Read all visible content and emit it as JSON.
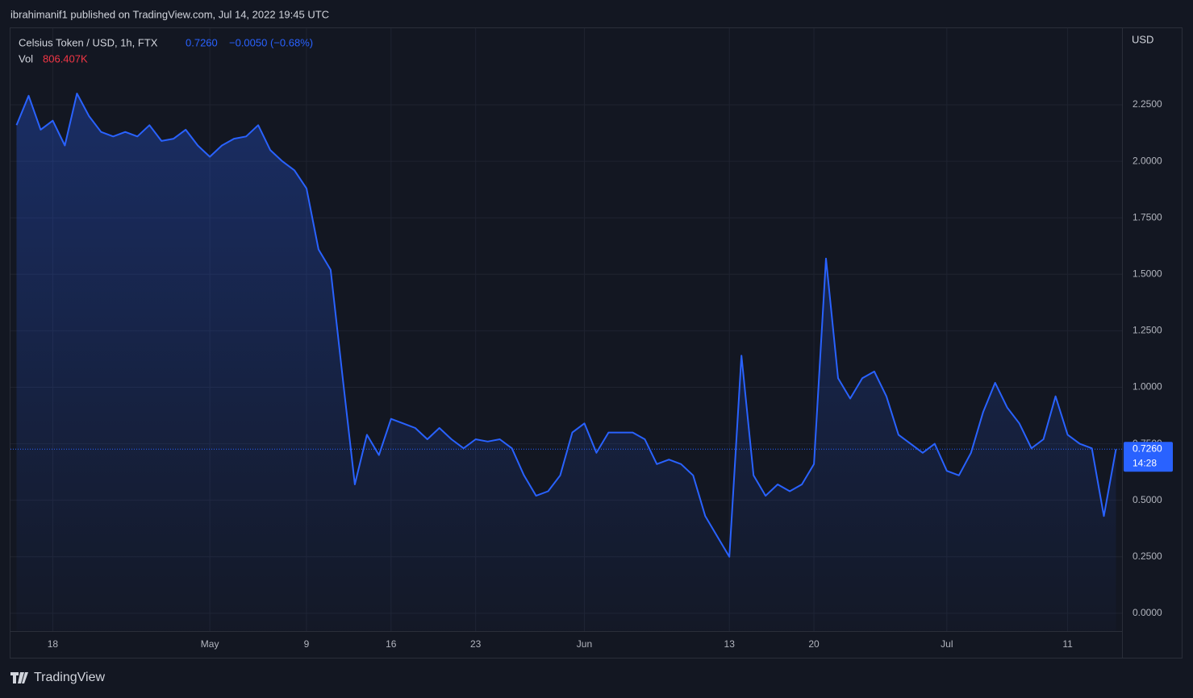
{
  "header": {
    "publisher": "ibrahimanif1 published on TradingView.com, Jul 14, 2022 19:45 UTC",
    "footer_logo": "TradingView"
  },
  "chart_data": {
    "type": "area",
    "title": "Celsius Token / USD, 1h, FTX",
    "last_price": "0.7260",
    "change": "−0.0050 (−0.68%)",
    "countdown": "14:28",
    "volume_label": "Vol",
    "volume_value": "806.407K",
    "y_axis_label": "USD",
    "categories": [
      null,
      null,
      null,
      "18",
      null,
      null,
      null,
      null,
      null,
      null,
      null,
      null,
      null,
      null,
      null,
      null,
      "May",
      null,
      null,
      null,
      null,
      null,
      null,
      null,
      "9",
      null,
      null,
      null,
      null,
      null,
      null,
      "16",
      null,
      null,
      null,
      null,
      null,
      null,
      "23",
      null,
      null,
      null,
      null,
      null,
      null,
      null,
      null,
      "Jun",
      null,
      null,
      null,
      null,
      null,
      null,
      null,
      null,
      null,
      null,
      null,
      "13",
      null,
      null,
      null,
      null,
      null,
      null,
      "20",
      null,
      null,
      null,
      null,
      null,
      null,
      null,
      null,
      null,
      null,
      "Jul",
      null,
      null,
      null,
      null,
      null,
      null,
      null,
      null,
      null,
      "11",
      null,
      null,
      null,
      null
    ],
    "series": [
      {
        "name": "Celsius Token / USD",
        "color": "#2962ff",
        "values": [
          2.16,
          2.29,
          2.14,
          2.18,
          2.07,
          2.3,
          2.2,
          2.13,
          2.11,
          2.13,
          2.11,
          2.16,
          2.09,
          2.1,
          2.14,
          2.07,
          2.02,
          2.07,
          2.1,
          2.11,
          2.16,
          2.05,
          2.0,
          1.96,
          1.88,
          1.61,
          1.52,
          1.04,
          0.57,
          0.79,
          0.7,
          0.86,
          0.84,
          0.82,
          0.77,
          0.82,
          0.77,
          0.73,
          0.77,
          0.76,
          0.77,
          0.73,
          0.61,
          0.52,
          0.54,
          0.61,
          0.8,
          0.84,
          0.71,
          0.8,
          0.8,
          0.8,
          0.77,
          0.66,
          0.68,
          0.66,
          0.61,
          0.43,
          0.34,
          0.25,
          1.14,
          0.61,
          0.52,
          0.57,
          0.54,
          0.57,
          0.66,
          1.57,
          1.04,
          0.95,
          1.04,
          1.07,
          0.96,
          0.79,
          0.75,
          0.71,
          0.75,
          0.63,
          0.61,
          0.71,
          0.89,
          1.02,
          0.91,
          0.84,
          0.73,
          0.77,
          0.96,
          0.79,
          0.75,
          0.73,
          0.43,
          0.726
        ]
      }
    ],
    "ylim": [
      -0.079,
      2.589
    ],
    "yticks": [
      {
        "value": 0,
        "label": "0.0000"
      },
      {
        "value": 0.25,
        "label": "0.2500"
      },
      {
        "value": 0.5,
        "label": "0.5000"
      },
      {
        "value": 0.75,
        "label": "0.7500"
      },
      {
        "value": 1,
        "label": "1.0000"
      },
      {
        "value": 1.25,
        "label": "1.2500"
      },
      {
        "value": 1.5,
        "label": "1.5000"
      },
      {
        "value": 1.75,
        "label": "1.7500"
      },
      {
        "value": 2,
        "label": "2.0000"
      },
      {
        "value": 2.25,
        "label": "2.2500"
      }
    ],
    "grid": true
  }
}
